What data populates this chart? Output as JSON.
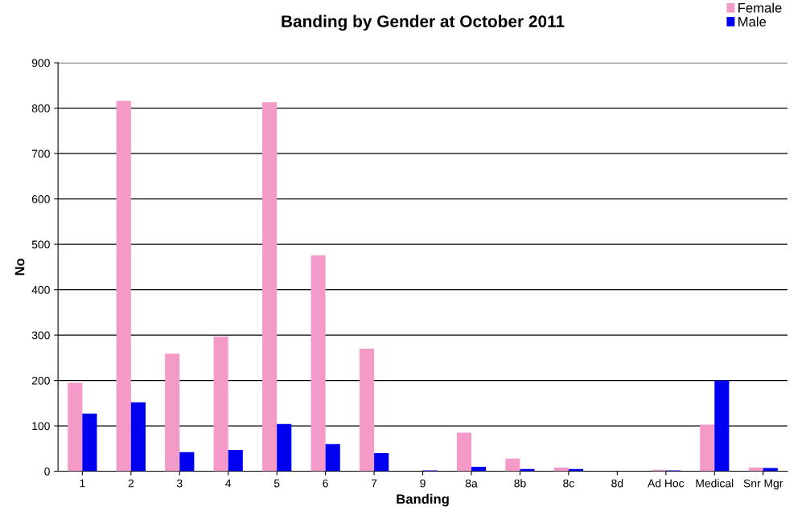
{
  "chart_data": {
    "type": "bar",
    "title": "Banding by Gender at October 2011",
    "xlabel": "Banding",
    "ylabel": "No",
    "categories": [
      "1",
      "2",
      "3",
      "4",
      "5",
      "6",
      "7",
      "9",
      "8a",
      "8b",
      "8c",
      "8d",
      "Ad Hoc",
      "Medical",
      "Snr Mgr"
    ],
    "series": [
      {
        "name": "Female",
        "color": "#f49ac8",
        "values": [
          195,
          816,
          259,
          297,
          813,
          476,
          270,
          0,
          85,
          28,
          8,
          0,
          3,
          103,
          8
        ]
      },
      {
        "name": "Male",
        "color": "#0000f0",
        "values": [
          127,
          152,
          42,
          47,
          104,
          60,
          40,
          2,
          10,
          5,
          5,
          null,
          2,
          200,
          7
        ]
      }
    ],
    "ylim": [
      0,
      900
    ],
    "yticks": [
      0,
      100,
      200,
      300,
      400,
      500,
      600,
      700,
      800,
      900
    ],
    "grid": "y",
    "legend": "top right"
  }
}
